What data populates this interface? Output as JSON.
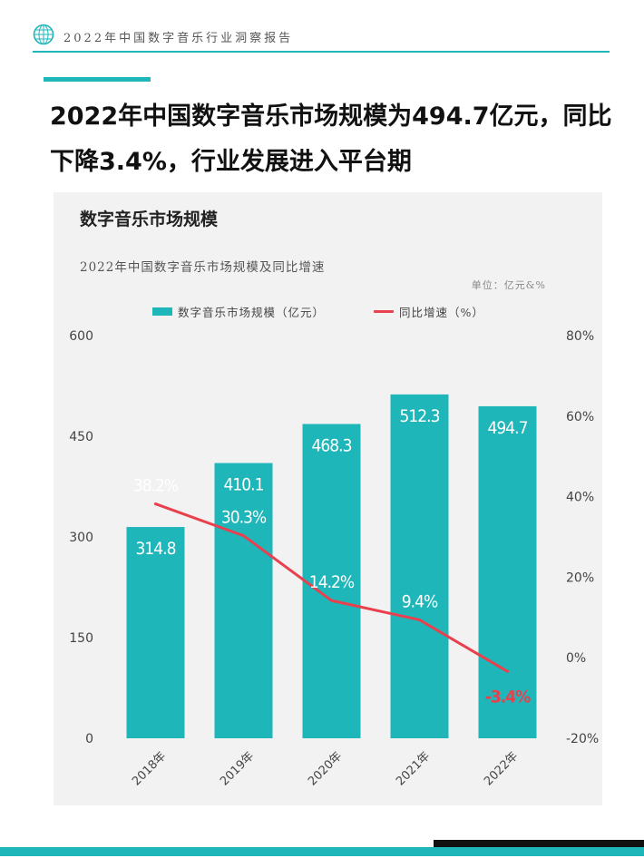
{
  "header": {
    "title": "2022年中国数字音乐行业洞察报告"
  },
  "headline": "2022年中国数字音乐市场规模为494.7亿元，同比下降3.4%，行业发展进入平台期",
  "chart_box": {
    "title": "数字音乐市场规模"
  },
  "colors": {
    "bar": "#1fb6b9",
    "line": "#e8404d",
    "accent": "#1fb6b9"
  },
  "chart_data": {
    "type": "bar",
    "title": "2022年中国数字音乐市场规模及同比增速",
    "unit_note": "单位：亿元&%",
    "categories": [
      "2018年",
      "2019年",
      "2020年",
      "2021年",
      "2022年"
    ],
    "series": [
      {
        "name": "数字音乐市场规模（亿元）",
        "type": "bar",
        "axis": "left",
        "values": [
          314.8,
          410.1,
          468.3,
          512.3,
          494.7
        ],
        "labels": [
          "314.8",
          "410.1",
          "468.3",
          "512.3",
          "494.7"
        ]
      },
      {
        "name": "同比增速（%）",
        "type": "line",
        "axis": "right",
        "values": [
          38.2,
          30.3,
          14.2,
          9.4,
          -3.4
        ],
        "labels": [
          "38.2%",
          "30.3%",
          "14.2%",
          "9.4%",
          "-3.4%"
        ]
      }
    ],
    "y_left": {
      "min": 0,
      "max": 600,
      "ticks": [
        "0",
        "150",
        "300",
        "450",
        "600"
      ]
    },
    "y_right": {
      "min": -20,
      "max": 80,
      "ticks": [
        "-20%",
        "0%",
        "20%",
        "40%",
        "60%",
        "80%"
      ]
    },
    "grid": false,
    "legend_position": "top"
  }
}
